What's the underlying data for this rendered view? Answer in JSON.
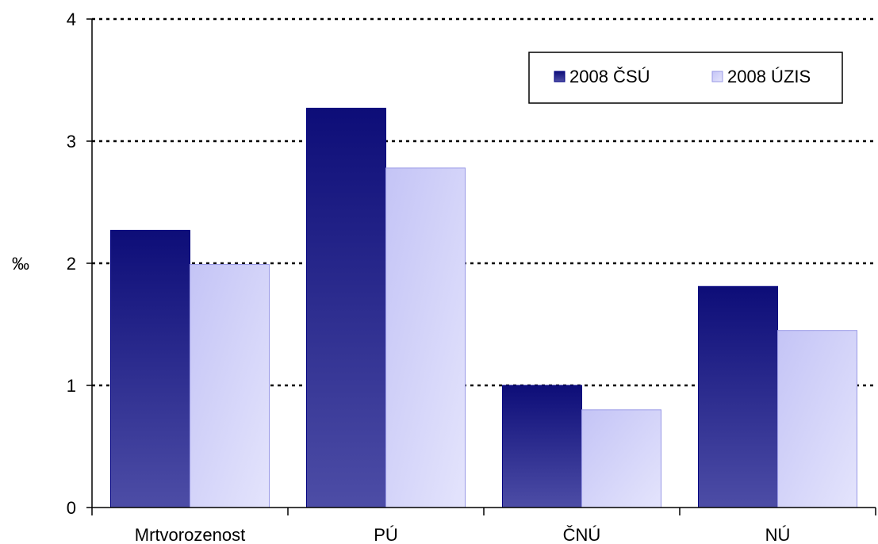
{
  "chart_data": {
    "type": "bar",
    "title": "",
    "xlabel": "",
    "ylabel": "‰",
    "ylim": [
      0,
      4
    ],
    "yticks": [
      "0",
      "1",
      "2",
      "3",
      "4"
    ],
    "grid": "horizontal dotted",
    "legend_position": "top-right",
    "categories": [
      "Mrtvorozenost",
      "PÚ",
      "ČNÚ",
      "NÚ"
    ],
    "series": [
      {
        "name": "2008 ČSÚ",
        "values": [
          2.27,
          3.27,
          1.0,
          1.81
        ],
        "color": "#1a1a80"
      },
      {
        "name": "2008 ÚZIS",
        "values": [
          1.99,
          2.78,
          0.8,
          1.45
        ],
        "color": "#c8c8f8"
      }
    ]
  }
}
